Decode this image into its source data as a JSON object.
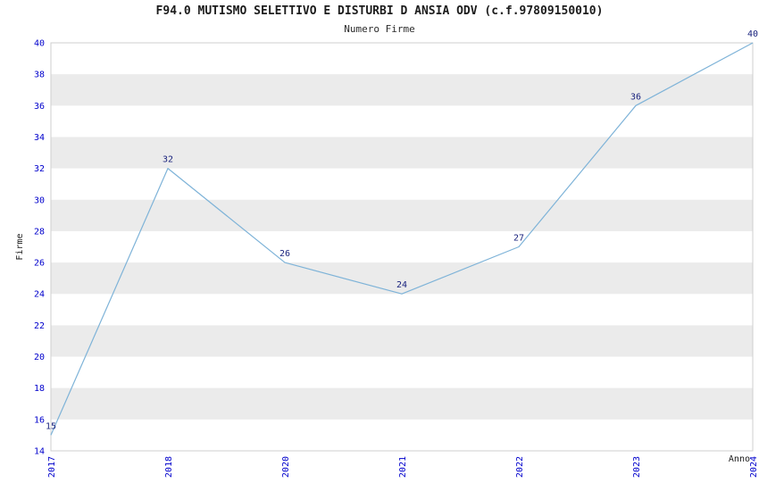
{
  "title": "F94.0 MUTISMO SELETTIVO E DISTURBI D ANSIA ODV (c.f.97809150010)",
  "subtitle": "Numero Firme",
  "chart_data": {
    "type": "line",
    "title": "F94.0 MUTISMO SELETTIVO E DISTURBI D ANSIA ODV (c.f.97809150010)",
    "subtitle": "Numero Firme",
    "categories": [
      "2017",
      "2018",
      "2020",
      "2021",
      "2022",
      "2023",
      "2024"
    ],
    "values": [
      15,
      32,
      26,
      24,
      27,
      36,
      40
    ],
    "xlabel": "Anno",
    "ylabel": "Firme",
    "ylim": [
      14,
      40
    ],
    "ytick_step": 2,
    "grid": false,
    "legend": "none",
    "colors": {
      "line": "#7eb3d8",
      "tick_label": "#0000cc",
      "value_label": "#1a237e",
      "axis_label": "#1c1c1c",
      "band": "#ebebeb",
      "frame": "#cfcfcf",
      "background": "#ffffff"
    }
  }
}
